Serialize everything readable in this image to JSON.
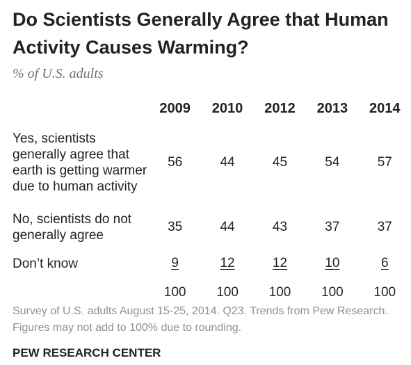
{
  "title": "Do Scientists Generally Agree that Human Activity Causes Warming?",
  "subtitle": "% of U.S. adults",
  "chart_data": {
    "type": "table",
    "title": "Do Scientists Generally Agree that Human Activity Causes Warming?",
    "subtitle": "% of U.S. adults",
    "columns": [
      "2009",
      "2010",
      "2012",
      "2013",
      "2014"
    ],
    "rows": [
      {
        "label": "Yes, scientists generally agree that earth is getting warmer due to human activity",
        "values": [
          56,
          44,
          45,
          54,
          57
        ]
      },
      {
        "label": "No, scientists do not generally agree",
        "values": [
          35,
          44,
          43,
          37,
          37
        ]
      },
      {
        "label": "Don’t know",
        "values": [
          9,
          12,
          12,
          10,
          6
        ]
      },
      {
        "label": "",
        "values": [
          100,
          100,
          100,
          100,
          100
        ]
      }
    ]
  },
  "note": "Survey of U.S. adults August 15-25, 2014. Q23. Trends from Pew Research. Figures may not add to 100% due to rounding.",
  "source": "PEW RESEARCH CENTER"
}
